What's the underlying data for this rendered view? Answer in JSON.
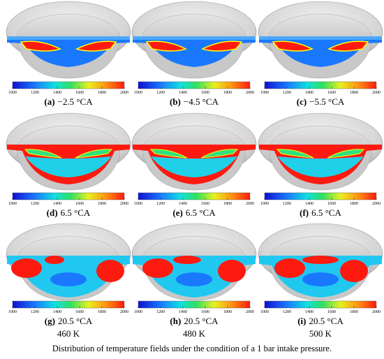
{
  "panels": [
    {
      "tag": "(a)",
      "label": "−2.5 °CA"
    },
    {
      "tag": "(b)",
      "label": "−4.5 °CA"
    },
    {
      "tag": "(c)",
      "label": "−5.5 °CA"
    },
    {
      "tag": "(d)",
      "label": "6.5 °CA"
    },
    {
      "tag": "(e)",
      "label": "6.5 °CA"
    },
    {
      "tag": "(f)",
      "label": "6.5 °CA"
    },
    {
      "tag": "(g)",
      "label": "20.5 °CA",
      "sublabel": "460 K"
    },
    {
      "tag": "(h)",
      "label": "20.5 °CA",
      "sublabel": "480 K"
    },
    {
      "tag": "(i)",
      "label": "20.5 °CA",
      "sublabel": "500 K"
    }
  ],
  "colorbar": {
    "lim": [
      1000,
      2000
    ],
    "ticks": [
      1000,
      1200,
      1400,
      1600,
      1800,
      2000
    ]
  },
  "caption": "Distribution of temperature fields under the condition of a 1 bar intake pressure."
}
